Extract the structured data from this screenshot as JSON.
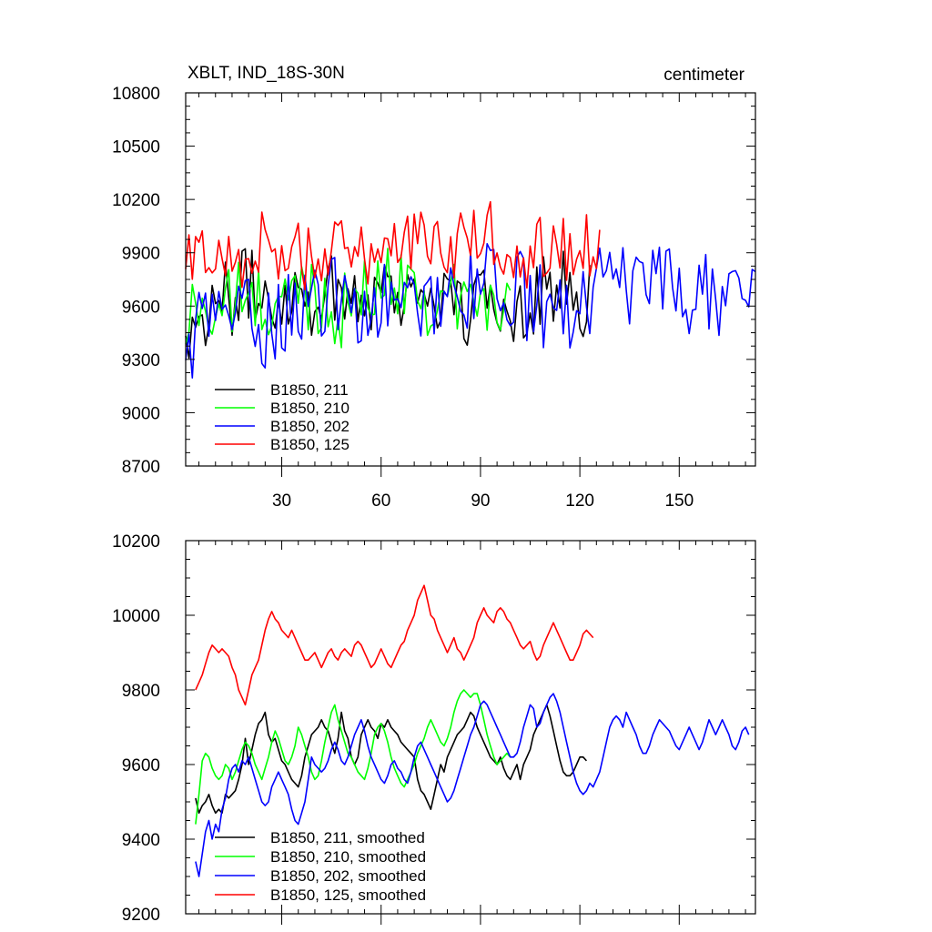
{
  "chart_data": [
    {
      "type": "line",
      "title": "XBLT, IND_18S-30N",
      "units": "centimeter",
      "xlim": [
        1,
        173
      ],
      "ylim": [
        8700,
        10800
      ],
      "xticks": [
        30,
        60,
        90,
        120,
        150
      ],
      "yticks": [
        8700,
        9000,
        9300,
        9600,
        9900,
        10200,
        10500,
        10800
      ],
      "legend_position": "lower-left",
      "grid": false,
      "series": [
        {
          "name": "B1850, 211",
          "color": "#000000",
          "x_start": 1,
          "x_end": 123,
          "base": [
            9520,
            9460,
            9560,
            9580,
            9640,
            9600,
            9620,
            9660,
            9680,
            9720,
            9690,
            9680,
            9660,
            9650,
            9650,
            9680,
            9700,
            9690,
            9660,
            9640,
            9650,
            9680,
            9700,
            9710,
            9690,
            9670,
            9660,
            9650,
            9680,
            9700,
            9720,
            9700,
            9680,
            9660,
            9680,
            9700,
            9710,
            9690,
            9660,
            9640,
            9620,
            9600,
            9580,
            9560,
            9570,
            9600,
            9620,
            9630,
            9620,
            9600,
            9590,
            9610,
            9640,
            9660,
            9680,
            9700,
            9720,
            9700,
            9680,
            9640,
            9620,
            9610,
            9620
          ],
          "noise": 230
        },
        {
          "name": "B1850, 210",
          "color": "#00ff00",
          "x_start": 1,
          "x_end": 99,
          "base": [
            9440,
            9560,
            9620,
            9600,
            9580,
            9560,
            9590,
            9620,
            9640,
            9660,
            9640,
            9610,
            9590,
            9570,
            9580,
            9620,
            9660,
            9680,
            9690,
            9680,
            9650,
            9620,
            9600,
            9590,
            9580,
            9600,
            9620,
            9650,
            9680,
            9700,
            9720,
            9740,
            9760,
            9750,
            9720,
            9690,
            9660,
            9640,
            9620,
            9610,
            9620,
            9640,
            9650,
            9640,
            9620,
            9600,
            9590,
            9610,
            9620,
            9610
          ],
          "noise": 220
        },
        {
          "name": "B1850, 202",
          "color": "#0000ff",
          "x_start": 1,
          "x_end": 173,
          "base": [
            9320,
            9400,
            9460,
            9520,
            9570,
            9600,
            9600,
            9590,
            9570,
            9540,
            9510,
            9490,
            9480,
            9500,
            9530,
            9570,
            9600,
            9620,
            9630,
            9630,
            9620,
            9620,
            9640,
            9650,
            9640,
            9630,
            9610,
            9590,
            9580,
            9590,
            9610,
            9620,
            9610,
            9600,
            9590,
            9600,
            9620,
            9650,
            9680,
            9700,
            9710,
            9700,
            9690,
            9680,
            9690,
            9710,
            9730,
            9740,
            9740,
            9720,
            9690,
            9650,
            9620,
            9600,
            9590,
            9580,
            9560,
            9550,
            9560,
            9600,
            9640,
            9680,
            9700,
            9710,
            9700,
            9690,
            9690,
            9690,
            9680,
            9680,
            9690,
            9700,
            9700,
            9690,
            9680,
            9680,
            9680,
            9670,
            9660,
            9660,
            9660,
            9670,
            9680,
            9690,
            9680,
            9670,
            9660
          ],
          "noise": 240
        },
        {
          "name": "B1850, 125",
          "color": "#ff0000",
          "x_start": 1,
          "x_end": 126,
          "base": [
            9800,
            9840,
            9880,
            9910,
            9900,
            9880,
            9860,
            9850,
            9870,
            9900,
            9930,
            9960,
            9950,
            9920,
            9900,
            9890,
            9880,
            9880,
            9890,
            9900,
            9910,
            9920,
            9910,
            9900,
            9890,
            9880,
            9890,
            9900,
            9920,
            9940,
            9960,
            9980,
            10020,
            10020,
            9990,
            9950,
            9920,
            9900,
            9900,
            9910,
            9920,
            9940,
            9960,
            9990,
            10010,
            10010,
            9990,
            9960,
            9940,
            9920,
            9910,
            9900,
            9910,
            9920,
            9930,
            9940,
            9930,
            9920,
            9910,
            9930,
            9950,
            9960,
            9950
          ],
          "noise": 200
        }
      ]
    },
    {
      "type": "line",
      "title": "",
      "xlim": [
        1,
        173
      ],
      "ylim": [
        9200,
        10200
      ],
      "xticks": [
        30,
        60,
        90,
        120,
        150
      ],
      "yticks": [
        9200,
        9400,
        9600,
        9800,
        10000,
        10200
      ],
      "legend_position": "lower-left",
      "grid": false,
      "series": [
        {
          "name": "B1850, 211, smoothed",
          "color": "#000000",
          "x_start": 4,
          "x_end": 123,
          "values": [
            9510,
            9470,
            9490,
            9500,
            9520,
            9490,
            9470,
            9480,
            9470,
            9520,
            9510,
            9520,
            9530,
            9560,
            9600,
            9670,
            9600,
            9640,
            9680,
            9710,
            9720,
            9740,
            9680,
            9660,
            9670,
            9640,
            9610,
            9600,
            9580,
            9560,
            9550,
            9540,
            9570,
            9620,
            9650,
            9680,
            9690,
            9700,
            9720,
            9700,
            9690,
            9660,
            9630,
            9670,
            9740,
            9690,
            9670,
            9620,
            9600,
            9620,
            9680,
            9700,
            9720,
            9700,
            9690,
            9670,
            9710,
            9700,
            9720,
            9700,
            9690,
            9680,
            9660,
            9650,
            9640,
            9630,
            9620,
            9560,
            9530,
            9520,
            9500,
            9480,
            9520,
            9560,
            9600,
            9580,
            9620,
            9640,
            9660,
            9680,
            9690,
            9700,
            9720,
            9740,
            9730,
            9700,
            9680,
            9660,
            9640,
            9620,
            9610,
            9600,
            9620,
            9590,
            9570,
            9560,
            9580,
            9600,
            9560,
            9600,
            9620,
            9640,
            9680,
            9700,
            9720,
            9740,
            9760,
            9730,
            9690,
            9650,
            9610,
            9580,
            9570,
            9570,
            9580,
            9600,
            9620,
            9620,
            9610
          ],
          "noise": 0
        },
        {
          "name": "B1850, 210, smoothed",
          "color": "#00ff00",
          "x_start": 4,
          "x_end": 99,
          "values": [
            9440,
            9520,
            9610,
            9630,
            9620,
            9590,
            9570,
            9560,
            9570,
            9600,
            9590,
            9560,
            9580,
            9610,
            9640,
            9660,
            9650,
            9630,
            9600,
            9580,
            9560,
            9590,
            9620,
            9660,
            9690,
            9670,
            9640,
            9610,
            9600,
            9620,
            9650,
            9700,
            9680,
            9650,
            9620,
            9580,
            9560,
            9570,
            9610,
            9660,
            9700,
            9740,
            9760,
            9720,
            9690,
            9660,
            9630,
            9620,
            9600,
            9580,
            9570,
            9560,
            9590,
            9630,
            9680,
            9700,
            9710,
            9690,
            9660,
            9620,
            9590,
            9570,
            9550,
            9540,
            9560,
            9580,
            9600,
            9630,
            9650,
            9670,
            9700,
            9720,
            9700,
            9680,
            9660,
            9650,
            9670,
            9700,
            9740,
            9770,
            9790,
            9800,
            9790,
            9780,
            9790,
            9790,
            9760,
            9720,
            9680,
            9650,
            9620,
            9600,
            9610,
            9620,
            9630,
            9620
          ],
          "noise": 0
        },
        {
          "name": "B1850, 202, smoothed",
          "color": "#0000ff",
          "x_start": 4,
          "x_end": 171,
          "values": [
            9340,
            9300,
            9360,
            9420,
            9450,
            9400,
            9440,
            9420,
            9480,
            9510,
            9560,
            9590,
            9600,
            9580,
            9610,
            9600,
            9620,
            9590,
            9560,
            9530,
            9500,
            9490,
            9500,
            9540,
            9560,
            9580,
            9560,
            9540,
            9520,
            9480,
            9450,
            9440,
            9470,
            9500,
            9560,
            9620,
            9600,
            9590,
            9580,
            9590,
            9610,
            9640,
            9660,
            9640,
            9610,
            9600,
            9620,
            9650,
            9680,
            9700,
            9720,
            9690,
            9650,
            9620,
            9600,
            9580,
            9560,
            9550,
            9570,
            9600,
            9610,
            9590,
            9580,
            9560,
            9550,
            9580,
            9620,
            9650,
            9660,
            9640,
            9620,
            9600,
            9580,
            9560,
            9540,
            9520,
            9500,
            9510,
            9530,
            9560,
            9590,
            9620,
            9650,
            9680,
            9700,
            9730,
            9760,
            9770,
            9760,
            9740,
            9720,
            9700,
            9680,
            9660,
            9640,
            9620,
            9620,
            9630,
            9660,
            9700,
            9730,
            9760,
            9750,
            9700,
            9710,
            9740,
            9760,
            9780,
            9790,
            9770,
            9740,
            9700,
            9660,
            9620,
            9580,
            9550,
            9530,
            9520,
            9530,
            9550,
            9540,
            9560,
            9580,
            9620,
            9660,
            9700,
            9720,
            9730,
            9720,
            9700,
            9740,
            9720,
            9700,
            9680,
            9650,
            9630,
            9630,
            9650,
            9680,
            9700,
            9720,
            9710,
            9700,
            9690,
            9670,
            9650,
            9640,
            9660,
            9680,
            9700,
            9680,
            9660,
            9640,
            9660,
            9690,
            9720,
            9700,
            9680,
            9700,
            9720,
            9700,
            9680,
            9650,
            9640,
            9660,
            9690,
            9700,
            9680,
            9660,
            9640
          ],
          "noise": 0
        },
        {
          "name": "B1850, 125, smoothed",
          "color": "#ff0000",
          "x_start": 4,
          "x_end": 124,
          "values": [
            9800,
            9820,
            9840,
            9870,
            9900,
            9920,
            9910,
            9900,
            9910,
            9900,
            9890,
            9860,
            9840,
            9800,
            9780,
            9760,
            9800,
            9840,
            9860,
            9880,
            9920,
            9960,
            9990,
            10010,
            9990,
            9980,
            9960,
            9950,
            9940,
            9960,
            9940,
            9920,
            9900,
            9880,
            9880,
            9890,
            9900,
            9880,
            9860,
            9880,
            9900,
            9910,
            9890,
            9880,
            9900,
            9910,
            9900,
            9890,
            9920,
            9930,
            9920,
            9900,
            9880,
            9860,
            9870,
            9890,
            9910,
            9890,
            9870,
            9860,
            9880,
            9900,
            9920,
            9930,
            9960,
            9980,
            10000,
            10040,
            10060,
            10080,
            10040,
            10000,
            9990,
            9960,
            9940,
            9920,
            9900,
            9920,
            9940,
            9910,
            9900,
            9880,
            9900,
            9920,
            9940,
            9980,
            10000,
            10020,
            10000,
            9990,
            9980,
            10010,
            10020,
            10010,
            9990,
            9980,
            9960,
            9940,
            9920,
            9910,
            9920,
            9930,
            9900,
            9880,
            9890,
            9920,
            9940,
            9960,
            9980,
            9960,
            9940,
            9920,
            9900,
            9880,
            9880,
            9900,
            9920,
            9950,
            9960,
            9950,
            9940
          ],
          "noise": 0
        }
      ]
    }
  ]
}
